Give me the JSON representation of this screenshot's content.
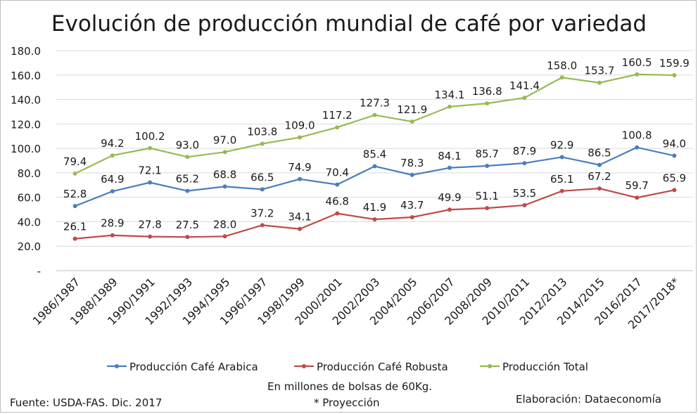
{
  "chart_data": {
    "type": "line",
    "title": "Evolución de producción mundial de café por variedad",
    "categories": [
      "1986/1987",
      "1988/1989",
      "1990/1991",
      "1992/1993",
      "1994/1995",
      "1996/1997",
      "1998/1999",
      "2000/2001",
      "2002/2003",
      "2004/2005",
      "2006/2007",
      "2008/2009",
      "2010/2011",
      "2012/2013",
      "2014/2015",
      "2016/2017",
      "2017/2018*"
    ],
    "y_ticks": [
      "-",
      "20.0",
      "40.0",
      "60.0",
      "80.0",
      "100.0",
      "120.0",
      "140.0",
      "160.0",
      "180.0"
    ],
    "ylim": [
      0,
      180
    ],
    "grid": true,
    "legend_position": "bottom",
    "series": [
      {
        "name": "Producción Café Arabica",
        "color": "#4a7ebb",
        "values": [
          52.8,
          64.9,
          72.1,
          65.2,
          68.8,
          66.5,
          74.9,
          70.4,
          85.4,
          78.3,
          84.1,
          85.7,
          87.9,
          92.9,
          86.5,
          100.8,
          94.0
        ],
        "labels": [
          "52.8",
          "64.9",
          "72.1",
          "65.2",
          "68.8",
          "66.5",
          "74.9",
          "70.4",
          "85.4",
          "78.3",
          "84.1",
          "85.7",
          "87.9",
          "92.9",
          "86.5",
          "100.8",
          "94.0"
        ]
      },
      {
        "name": "Producción Café Robusta",
        "color": "#be4b48",
        "values": [
          26.1,
          28.9,
          27.8,
          27.5,
          28.0,
          37.2,
          34.1,
          46.8,
          41.9,
          43.7,
          49.9,
          51.1,
          53.5,
          65.1,
          67.2,
          59.7,
          65.9
        ],
        "labels": [
          "26.1",
          "28.9",
          "27.8",
          "27.5",
          "28.0",
          "37.2",
          "34.1",
          "46.8",
          "41.9",
          "43.7",
          "49.9",
          "51.1",
          "53.5",
          "65.1",
          "67.2",
          "59.7",
          "65.9"
        ]
      },
      {
        "name": "Producción Total",
        "color": "#98b954",
        "values": [
          79.4,
          94.2,
          100.2,
          93.0,
          97.0,
          103.8,
          109.0,
          117.2,
          127.3,
          121.9,
          134.1,
          136.8,
          141.4,
          158.0,
          153.7,
          160.5,
          159.9
        ],
        "labels": [
          "79.4",
          "94.2",
          "100.2",
          "93.0",
          "97.0",
          "103.8",
          "109.0",
          "117.2",
          "127.3",
          "121.9",
          "134.1",
          "136.8",
          "141.4",
          "158.0",
          "153.7",
          "160.5",
          "159.9"
        ]
      }
    ]
  },
  "footer": {
    "units": "En millones de bolsas de 60Kg.",
    "projection": "* Proyección",
    "source": "Fuente: USDA-FAS. Dic. 2017",
    "credit": "Elaboración: Dataeconomía"
  }
}
